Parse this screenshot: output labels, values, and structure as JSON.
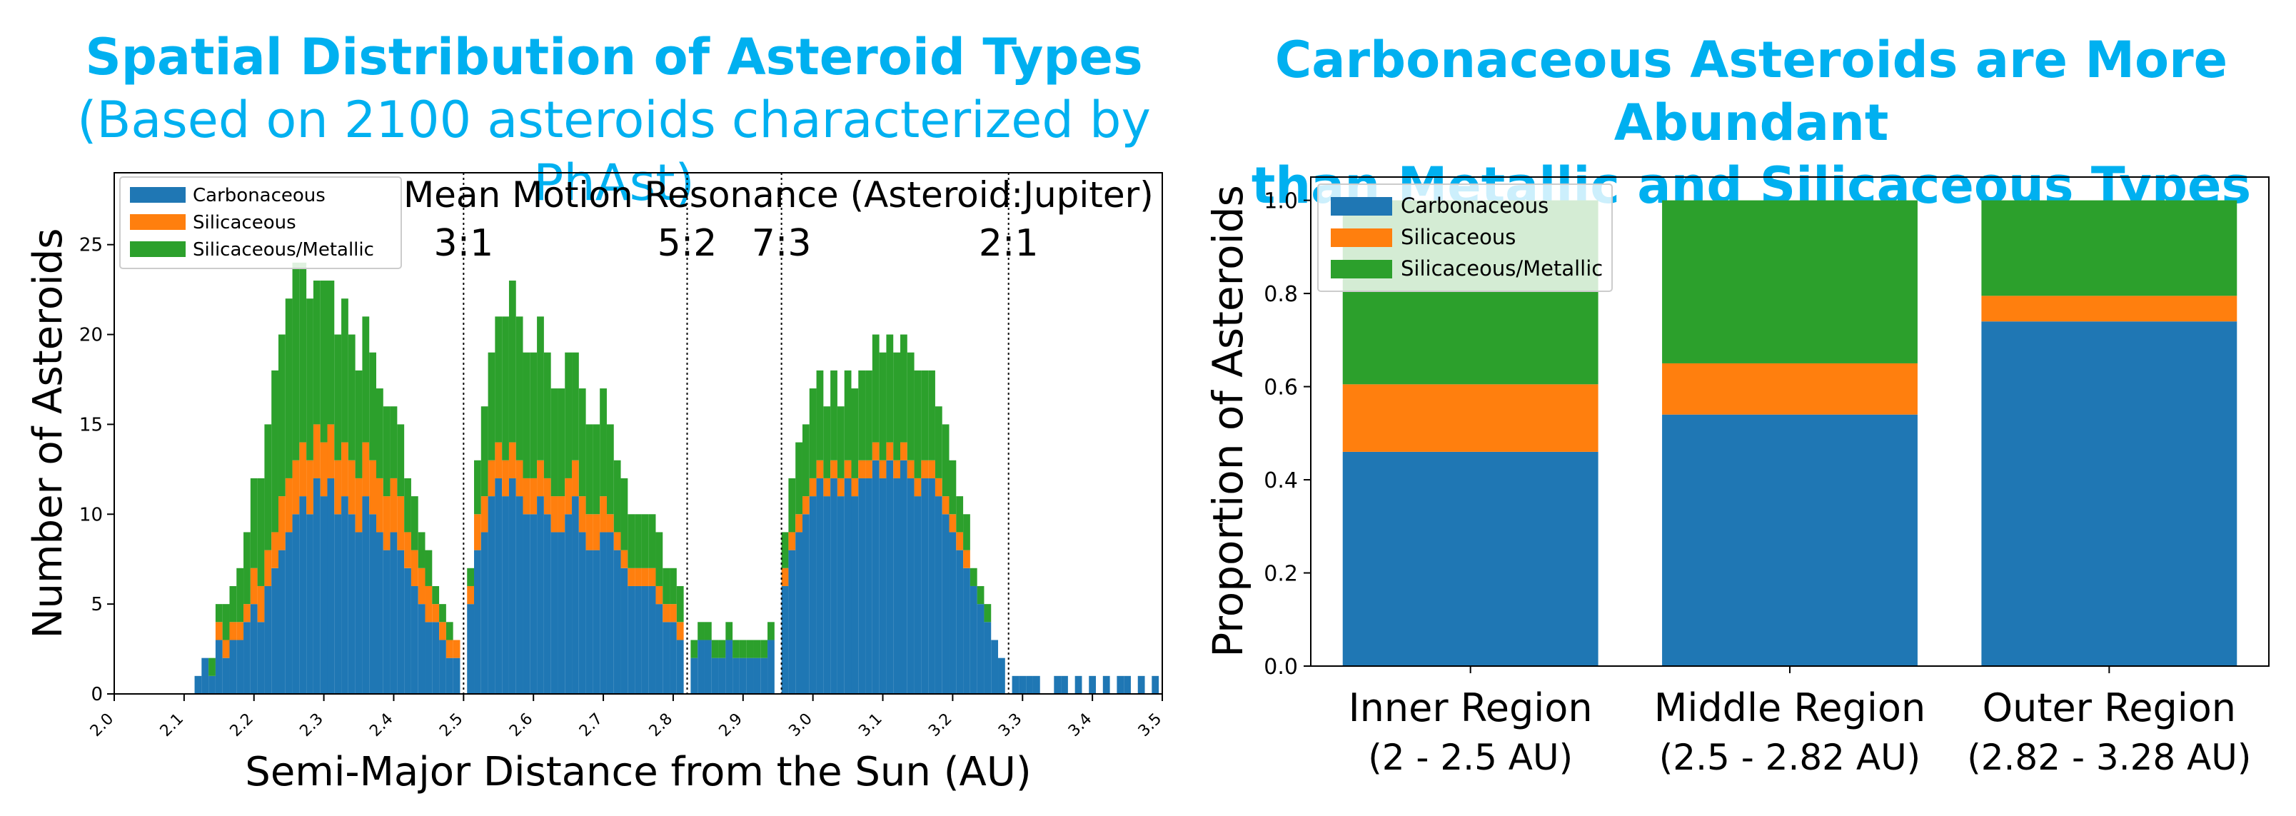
{
  "left_panel": {
    "title": "Spatial Distribution of Asteroid Types",
    "subtitle": "(Based on 2100 asteroids characterized by PhAst)"
  },
  "right_panel": {
    "title_line1": "Carbonaceous Asteroids are More Abundant",
    "title_line2": "than Metallic and Silicaceous Types"
  },
  "colors": {
    "carbonaceous": "#1f77b4",
    "silicaceous": "#ff7f0e",
    "silicaceous_metallic": "#2ca02c",
    "title": "#00b0f0"
  },
  "chart_data": [
    {
      "type": "bar",
      "stacked": true,
      "xlabel": "Semi-Major Distance from the Sun (AU)",
      "ylabel": "Number of Asteroids",
      "xlim": [
        2.0,
        3.5
      ],
      "ylim": [
        0,
        29
      ],
      "x_ticks": [
        "2.0",
        "2.1",
        "2.2",
        "2.3",
        "2.4",
        "2.5",
        "2.6",
        "2.7",
        "2.8",
        "2.9",
        "3.0",
        "3.1",
        "3.2",
        "3.3",
        "3.4",
        "3.5"
      ],
      "y_ticks": [
        "0",
        "5",
        "10",
        "15",
        "20",
        "25"
      ],
      "legend": [
        "Carbonaceous",
        "Silicaceous",
        "Silicaceous/Metallic"
      ],
      "legend_position": "upper-left",
      "annotation_title": "Mean Motion Resonance (Asteroid:Jupiter)",
      "resonances": [
        {
          "label": "3:1",
          "x": 2.5
        },
        {
          "label": "5:2",
          "x": 2.82
        },
        {
          "label": "7:3",
          "x": 2.955
        },
        {
          "label": "2:1",
          "x": 3.28
        }
      ],
      "bin_width": 0.01,
      "x": [
        2.12,
        2.13,
        2.14,
        2.15,
        2.16,
        2.17,
        2.18,
        2.19,
        2.2,
        2.21,
        2.22,
        2.23,
        2.24,
        2.25,
        2.26,
        2.27,
        2.28,
        2.29,
        2.3,
        2.31,
        2.32,
        2.33,
        2.34,
        2.35,
        2.36,
        2.37,
        2.38,
        2.39,
        2.4,
        2.41,
        2.42,
        2.43,
        2.44,
        2.45,
        2.46,
        2.47,
        2.48,
        2.49,
        2.51,
        2.52,
        2.53,
        2.54,
        2.55,
        2.56,
        2.57,
        2.58,
        2.59,
        2.6,
        2.61,
        2.62,
        2.63,
        2.64,
        2.65,
        2.66,
        2.67,
        2.68,
        2.69,
        2.7,
        2.71,
        2.72,
        2.73,
        2.74,
        2.75,
        2.76,
        2.77,
        2.78,
        2.79,
        2.8,
        2.81,
        2.83,
        2.84,
        2.85,
        2.86,
        2.87,
        2.88,
        2.89,
        2.9,
        2.91,
        2.92,
        2.93,
        2.94,
        2.96,
        2.97,
        2.98,
        2.99,
        3.0,
        3.01,
        3.02,
        3.03,
        3.04,
        3.05,
        3.06,
        3.07,
        3.08,
        3.09,
        3.1,
        3.11,
        3.12,
        3.13,
        3.14,
        3.15,
        3.16,
        3.17,
        3.18,
        3.19,
        3.2,
        3.21,
        3.22,
        3.23,
        3.24,
        3.25,
        3.26,
        3.27,
        3.29,
        3.3,
        3.31,
        3.32,
        3.35,
        3.36,
        3.38,
        3.4,
        3.42,
        3.44,
        3.45,
        3.47,
        3.49
      ],
      "series": [
        {
          "name": "Carbonaceous",
          "values": [
            1,
            2,
            1,
            3,
            2,
            3,
            3,
            4,
            5,
            4,
            6,
            7,
            8,
            9,
            10,
            11,
            10,
            12,
            11,
            12,
            10,
            11,
            10,
            9,
            11,
            10,
            9,
            8,
            9,
            8,
            7,
            6,
            5,
            4,
            4,
            3,
            2,
            2,
            5,
            8,
            9,
            11,
            12,
            11,
            12,
            11,
            10,
            10,
            11,
            10,
            9,
            9,
            10,
            11,
            9,
            8,
            8,
            9,
            9,
            8,
            7,
            6,
            6,
            6,
            6,
            5,
            4,
            4,
            3,
            2,
            3,
            3,
            2,
            2,
            3,
            2,
            2,
            2,
            2,
            2,
            3,
            6,
            8,
            9,
            10,
            11,
            12,
            11,
            12,
            11,
            12,
            11,
            12,
            12,
            13,
            12,
            13,
            12,
            13,
            12,
            11,
            12,
            12,
            11,
            10,
            9,
            8,
            7,
            6,
            5,
            4,
            3,
            2,
            1,
            1,
            1,
            1,
            1,
            1,
            1,
            1,
            1,
            1,
            1,
            1,
            1
          ]
        },
        {
          "name": "Silicaceous",
          "values": [
            0,
            0,
            0,
            1,
            1,
            1,
            1,
            1,
            2,
            2,
            2,
            2,
            3,
            3,
            3,
            3,
            3,
            3,
            3,
            3,
            3,
            3,
            3,
            3,
            3,
            3,
            3,
            3,
            3,
            3,
            2,
            2,
            2,
            2,
            1,
            1,
            1,
            1,
            1,
            2,
            2,
            2,
            2,
            2,
            2,
            2,
            2,
            2,
            2,
            2,
            2,
            2,
            2,
            2,
            2,
            2,
            2,
            2,
            1,
            1,
            1,
            1,
            1,
            1,
            1,
            1,
            1,
            1,
            1,
            0,
            0,
            0,
            0,
            0,
            0,
            0,
            0,
            0,
            0,
            0,
            0,
            1,
            1,
            1,
            1,
            1,
            1,
            1,
            1,
            1,
            1,
            1,
            1,
            1,
            1,
            1,
            1,
            1,
            1,
            1,
            1,
            1,
            1,
            1,
            1,
            1,
            1,
            1,
            0,
            0,
            0,
            0,
            0,
            0,
            0,
            0,
            0,
            0,
            0,
            0,
            0,
            0,
            0,
            0,
            0,
            0
          ]
        },
        {
          "name": "Silicaceous/Metallic",
          "values": [
            0,
            0,
            1,
            1,
            2,
            2,
            3,
            4,
            5,
            6,
            7,
            9,
            9,
            10,
            11,
            10,
            9,
            8,
            9,
            8,
            7,
            8,
            7,
            6,
            7,
            6,
            5,
            5,
            4,
            4,
            3,
            3,
            2,
            2,
            1,
            1,
            1,
            0,
            1,
            3,
            5,
            6,
            7,
            8,
            9,
            8,
            7,
            7,
            8,
            7,
            6,
            6,
            7,
            6,
            6,
            5,
            5,
            6,
            5,
            4,
            4,
            3,
            3,
            3,
            3,
            3,
            2,
            2,
            2,
            1,
            1,
            1,
            1,
            1,
            1,
            1,
            1,
            1,
            1,
            1,
            1,
            2,
            3,
            4,
            4,
            5,
            5,
            4,
            5,
            4,
            5,
            5,
            5,
            5,
            6,
            6,
            6,
            6,
            6,
            6,
            6,
            5,
            5,
            4,
            4,
            3,
            2,
            2,
            1,
            1,
            1,
            0,
            0,
            0,
            0,
            0,
            0,
            0,
            0,
            0,
            0,
            0,
            0,
            0,
            0,
            0
          ]
        }
      ]
    },
    {
      "type": "bar",
      "stacked": true,
      "ylabel": "Proportion of Asteroids",
      "ylim": [
        0,
        1.05
      ],
      "y_ticks": [
        "0.0",
        "0.2",
        "0.4",
        "0.6",
        "0.8",
        "1.0"
      ],
      "legend": [
        "Carbonaceous",
        "Silicaceous",
        "Silicaceous/Metallic"
      ],
      "legend_position": "upper-left",
      "categories": [
        {
          "name": "Inner Region",
          "range": "(2 - 2.5 AU)"
        },
        {
          "name": "Middle Region",
          "range": "(2.5 - 2.82 AU)"
        },
        {
          "name": "Outer Region",
          "range": "(2.82 - 3.28 AU)"
        }
      ],
      "series": [
        {
          "name": "Carbonaceous",
          "values": [
            0.46,
            0.54,
            0.74
          ]
        },
        {
          "name": "Silicaceous",
          "values": [
            0.145,
            0.11,
            0.055
          ]
        },
        {
          "name": "Silicaceous/Metallic",
          "values": [
            0.395,
            0.35,
            0.205
          ]
        }
      ]
    }
  ]
}
